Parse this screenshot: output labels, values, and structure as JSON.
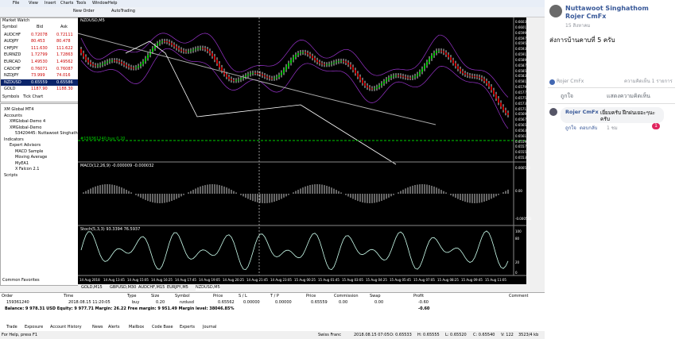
{
  "window": {
    "menu": [
      "File",
      "View",
      "Insert",
      "Charts",
      "Tools",
      "Window",
      "Help"
    ],
    "toolbar": [
      "New Order",
      "AutoTrading"
    ]
  },
  "market_watch": {
    "title": "Market Watch",
    "header": [
      "Symbol",
      "Bid",
      "Ask"
    ],
    "rows": [
      [
        "AUDCHF",
        "0.72078",
        "0.72111"
      ],
      [
        "AUDJPY",
        "80.453",
        "80.478"
      ],
      [
        "CHFJPY",
        "111.630",
        "111.622"
      ],
      [
        "EURNZD",
        "1.72799",
        "1.72863"
      ],
      [
        "EURCAD",
        "1.49530",
        "1.49562"
      ],
      [
        "CADCHF",
        "0.76071",
        "0.76087"
      ],
      [
        "NZDJPY",
        "73.999",
        "74.016"
      ],
      [
        "NZDUSD",
        "0.65559",
        "0.65586"
      ],
      [
        "GOLD",
        "1187.90",
        "1188.30"
      ]
    ],
    "tabs": [
      "Symbols",
      "Tick Chart"
    ]
  },
  "navigator": {
    "items": [
      "XM Global MT4",
      "Accounts",
      "XMGlobal-Demo 4",
      "XMGlobal-Demo",
      "53420445: Nuttawoot Singhathom",
      "Indicators",
      "Expert Advisors",
      "MACD Sample",
      "Moving Average",
      "MyEA1",
      "X Falcon 2.1",
      "Scripts"
    ],
    "tabs": [
      "Common",
      "Favorites"
    ]
  },
  "chart": {
    "title": "NZDUSD,M5",
    "trade_label": "#159361240 buy 0.20",
    "macd_label": "MACD(12,26,9) -0.000009 -0.000032",
    "stoch_label": "Stoch(5,3,3) 93.3394 76.5937",
    "price_axis": [
      "0.66035",
      "0.66015",
      "0.65995",
      "0.65975",
      "0.65955",
      "0.65935",
      "0.65915",
      "0.65895",
      "0.65875",
      "0.65855",
      "0.65835",
      "0.65815",
      "0.65795",
      "0.65775",
      "0.65755",
      "0.65735",
      "0.65715",
      "0.65695",
      "0.65675",
      "0.65655",
      "0.65635",
      "0.65615",
      "0.65595",
      "0.65575",
      "0.65555",
      "0.65535"
    ],
    "macd_axis": [
      "0.000573",
      "0.00",
      "-0.000582"
    ],
    "stoch_axis": [
      "100",
      "80",
      "20",
      "0"
    ],
    "time_axis": [
      "14 Aug 2018",
      "14 Aug 13:45",
      "14 Aug 15:05",
      "14 Aug 16:25",
      "14 Aug 17:45",
      "14 Aug 19:05",
      "14 Aug 20:25",
      "14 Aug 21:45",
      "14 Aug 23:05",
      "15 Aug 00:25",
      "15 Aug 01:45",
      "15 Aug 03:05",
      "15 Aug 04:25",
      "15 Aug 05:45",
      "15 Aug 07:05",
      "15 Aug 08:25",
      "15 Aug 09:45",
      "15 Aug 11:05"
    ],
    "tabs": [
      "GOLD,M15",
      "GBPUSD,M30",
      "AUDCHF,M15",
      "EURJPY,M5",
      "NZDUSD,M5"
    ]
  },
  "terminal": {
    "header": [
      "Order",
      "Time",
      "Type",
      "Size",
      "Symbol",
      "Price",
      "S / L",
      "T / P",
      "Price",
      "Commission",
      "Swap",
      "Profit",
      "Comment"
    ],
    "row": [
      "159361240",
      "2018.08.15 11:20:05",
      "buy",
      "0.20",
      "nzdusd",
      "0.65562",
      "0.00000",
      "0.00000",
      "0.65559",
      "0.00",
      "0.00",
      "-0.60"
    ],
    "balance": "Balance: 9 978.31 USD  Equity: 9 977.71  Margin: 26.22  Free margin: 9 951.49  Margin level: 38046.85%",
    "balance_profit": "-0.60",
    "tabs": [
      "Trade",
      "Exposure",
      "Account History",
      "News",
      "Alerts",
      "Mailbox",
      "Code Base",
      "Experts",
      "Journal"
    ]
  },
  "status": [
    "For Help, press F1",
    "Swiss Franc",
    "2018.08.15 07:05",
    "O: 0.65533",
    "H: 0.65555",
    "L: 0.65520",
    "C: 0.65540",
    "V: 122",
    "3523/4 kb"
  ],
  "post": {
    "author": "Nuttawoot Singhathom",
    "target": "Rojer CmFx",
    "date": "15 สิงหาคม",
    "text": "ส่งการบ้านคาบที่ 5 ครับ",
    "reactor": "Rojer CmFx",
    "comment_count": "ความคิดเห็น 1 รายการ",
    "like": "ถูกใจ",
    "comment": "แสดงความคิดเห็น",
    "comments": [
      {
        "author": "Rojer CmFx",
        "text": "เยี่ยมครับ ฝึกฝนเยอะๆนะครับ",
        "like": "ถูกใจ",
        "reply": "ตอบกลับ",
        "time": "1 ชม",
        "reactions": "1"
      }
    ]
  }
}
